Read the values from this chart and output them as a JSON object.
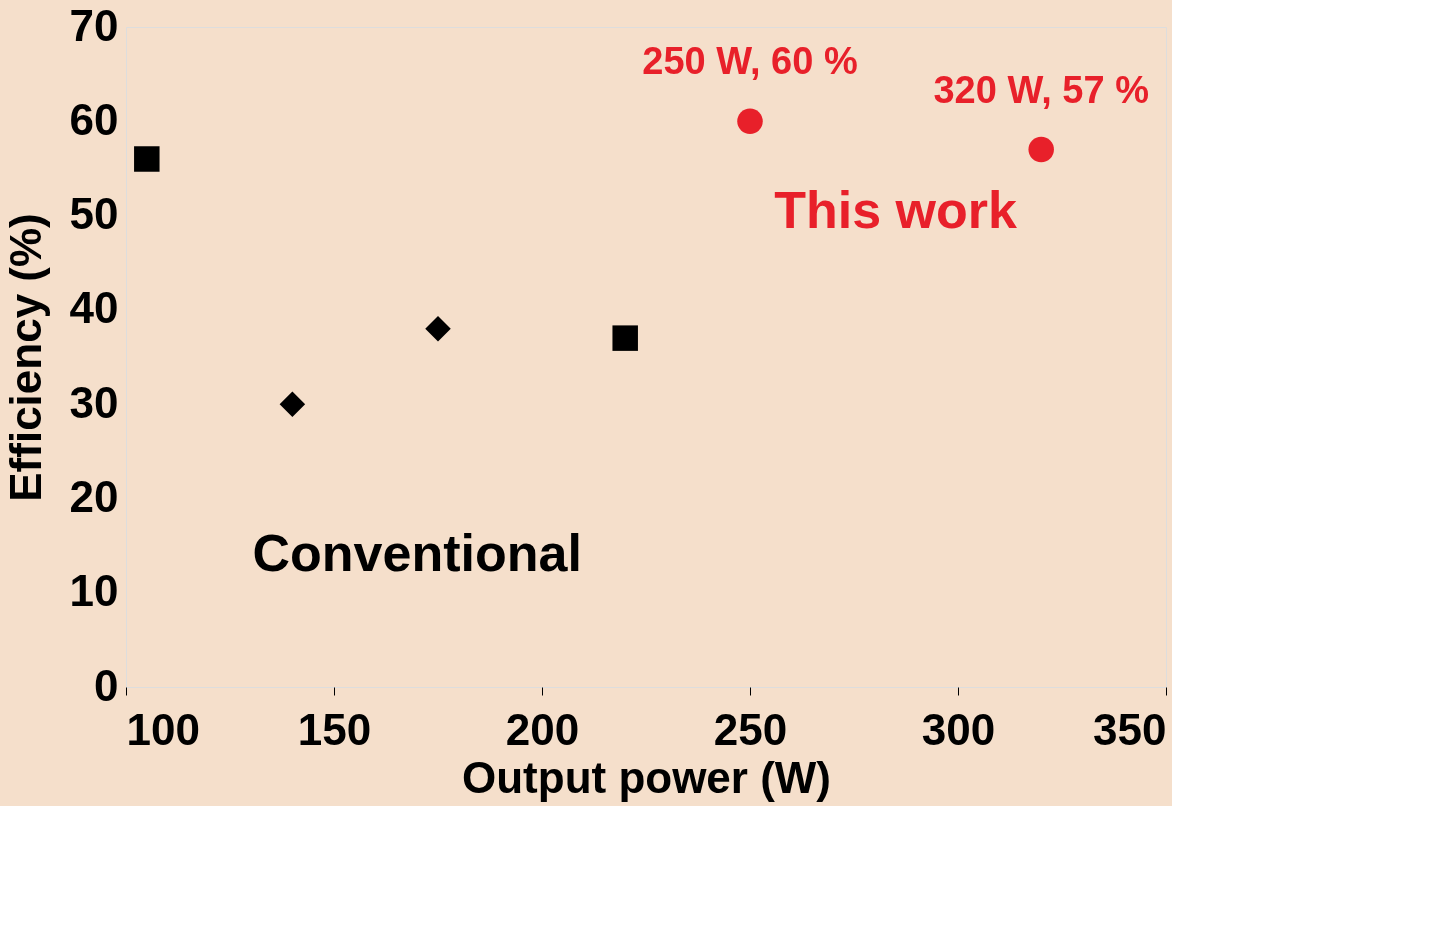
{
  "chart_data": {
    "type": "scatter",
    "xlabel": "Output power (W)",
    "ylabel": "Efficiency (%)",
    "xlim": [
      100,
      350
    ],
    "xticks": [
      100,
      150,
      200,
      250,
      300,
      350
    ],
    "ylim": [
      0,
      70
    ],
    "yticks": [
      0,
      10,
      20,
      30,
      40,
      50,
      60,
      70
    ],
    "grid": false,
    "series": [
      {
        "color": "#000000",
        "marker": "square",
        "x": [
          105,
          220
        ],
        "values": [
          56,
          37
        ]
      },
      {
        "color": "#000000",
        "marker": "diamond",
        "x": [
          140,
          175
        ],
        "values": [
          30,
          38
        ]
      },
      {
        "color": "#e8202a",
        "marker": "circle",
        "x": [
          250,
          320
        ],
        "values": [
          60,
          57
        ]
      }
    ],
    "annotations": [
      {
        "text": "250 W, 60 %",
        "x": 250,
        "y": 60
      },
      {
        "text": "320 W, 57 %",
        "x": 320,
        "y": 57
      },
      "This work",
      "Conventional"
    ]
  }
}
